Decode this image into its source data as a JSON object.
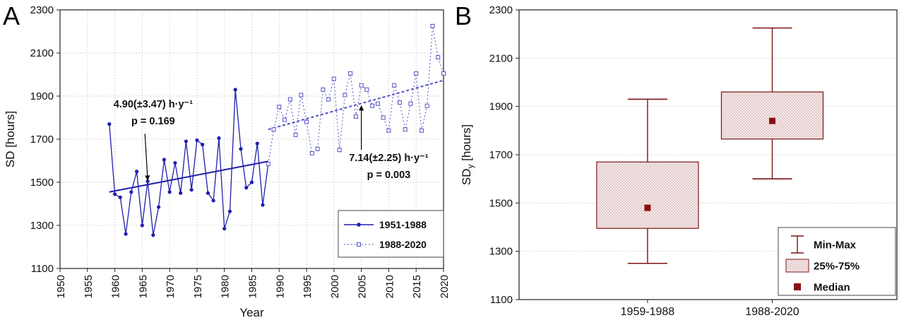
{
  "panels": {
    "a": {
      "label": "A"
    },
    "b": {
      "label": "B"
    }
  },
  "chart_data": [
    {
      "type": "line",
      "panel": "A",
      "xlabel": "Year",
      "ylabel": "SD [hours]",
      "xlim": [
        1950,
        2020
      ],
      "ylim": [
        1100,
        2300
      ],
      "xticks": [
        1950,
        1955,
        1960,
        1965,
        1970,
        1975,
        1980,
        1985,
        1990,
        1995,
        2000,
        2005,
        2010,
        2015,
        2020
      ],
      "yticks": [
        1100,
        1300,
        1500,
        1700,
        1900,
        2100,
        2300
      ],
      "grid": true,
      "colors": {
        "series1": "#1f1fae",
        "series2": "#5151c4",
        "grid": "#bdbdbd"
      },
      "series": [
        {
          "name": "1951-1988",
          "line": "solid",
          "marker": "filled-circle",
          "years": [
            1959,
            1960,
            1961,
            1962,
            1963,
            1964,
            1965,
            1966,
            1967,
            1968,
            1969,
            1970,
            1971,
            1972,
            1973,
            1974,
            1975,
            1976,
            1977,
            1978,
            1979,
            1980,
            1981,
            1982,
            1983,
            1984,
            1985,
            1986,
            1987,
            1988
          ],
          "sd_hours": [
            1770,
            1445,
            1430,
            1260,
            1455,
            1550,
            1300,
            1505,
            1255,
            1385,
            1605,
            1455,
            1590,
            1450,
            1690,
            1465,
            1695,
            1675,
            1450,
            1415,
            1705,
            1285,
            1365,
            1930,
            1655,
            1475,
            1500,
            1680,
            1395,
            1585
          ]
        },
        {
          "name": "1988-2020",
          "line": "dotted",
          "marker": "open-square",
          "years": [
            1988,
            1989,
            1990,
            1991,
            1992,
            1993,
            1994,
            1995,
            1996,
            1997,
            1998,
            1999,
            2000,
            2001,
            2002,
            2003,
            2004,
            2005,
            2006,
            2007,
            2008,
            2009,
            2010,
            2011,
            2012,
            2013,
            2014,
            2015,
            2016,
            2017,
            2018,
            2019,
            2020
          ],
          "sd_hours": [
            1585,
            1745,
            1850,
            1790,
            1885,
            1720,
            1905,
            1780,
            1635,
            1655,
            1930,
            1885,
            1980,
            1650,
            1905,
            2005,
            1805,
            1950,
            1930,
            1855,
            1865,
            1800,
            1740,
            1950,
            1870,
            1745,
            1865,
            2005,
            1740,
            1855,
            2225,
            2080,
            2005
          ]
        }
      ],
      "trend_lines": [
        {
          "series": "1951-1988",
          "style": "solid",
          "x": [
            1959,
            1988
          ],
          "y": [
            1455,
            1597
          ]
        },
        {
          "series": "1988-2020",
          "style": "dashed",
          "x": [
            1988,
            2020
          ],
          "y": [
            1745,
            1973
          ]
        }
      ],
      "annotations": [
        {
          "lines": [
            "4.90(±3.47) h·y⁻¹",
            "p = 0.169"
          ],
          "text_x": 1967,
          "text_y": 1848,
          "arrow_from": [
            1965.5,
            1725
          ],
          "arrow_to": [
            1966,
            1510
          ]
        },
        {
          "lines": [
            "7.14(±2.25) h·y⁻¹",
            "p = 0.003"
          ],
          "text_x": 2010,
          "text_y": 1598,
          "arrow_from": [
            2005,
            1650
          ],
          "arrow_to": [
            2005,
            1855
          ]
        }
      ],
      "legend": {
        "position": "bottom-right",
        "entries": [
          "1951-1988",
          "1988-2020"
        ]
      }
    },
    {
      "type": "box",
      "panel": "B",
      "ylabel_parts": {
        "main": "SD",
        "sub": "y",
        "rest": " [hours]"
      },
      "ylim": [
        1100,
        2300
      ],
      "yticks": [
        1100,
        1300,
        1500,
        1700,
        1900,
        2100,
        2300
      ],
      "categories": [
        "1959-1988",
        "1988-2020"
      ],
      "boxes": [
        {
          "category": "1959-1988",
          "min": 1250,
          "q1": 1395,
          "median": 1480,
          "q3": 1670,
          "max": 1930
        },
        {
          "category": "1988-2020",
          "min": 1600,
          "q1": 1765,
          "median": 1840,
          "q3": 1960,
          "max": 2225
        }
      ],
      "legend": {
        "position": "bottom-right",
        "entries": [
          {
            "icon": "min-max-whisker",
            "label": "Min-Max"
          },
          {
            "icon": "quartile-box",
            "label": "25%-75%"
          },
          {
            "icon": "median-square",
            "label": "Median"
          }
        ]
      },
      "colors": {
        "line": "#7a1414",
        "box_fill": "#f6eaea",
        "box_dots": "#c89a9a",
        "median": "#8b0f0f"
      }
    }
  ]
}
